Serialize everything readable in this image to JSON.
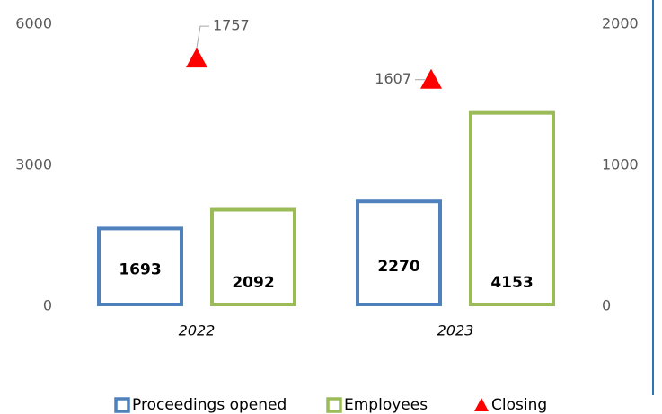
{
  "chart_data": {
    "type": "bar",
    "categories": [
      "2022",
      "2023"
    ],
    "series": [
      {
        "name": "Proceedings opened",
        "color": "#4f81bd",
        "values": [
          1693,
          2270
        ]
      },
      {
        "name": "Employees",
        "color": "#9bbb59",
        "values": [
          2092,
          4153
        ]
      },
      {
        "name": "Closing",
        "color": "#ff0000",
        "values": [
          1757,
          1607
        ],
        "axis": "y2",
        "marker": "triangle"
      }
    ],
    "ylim": [
      0,
      6000
    ],
    "yticks": [
      0,
      3000,
      6000
    ],
    "y2lim": [
      0,
      2000
    ],
    "y2ticks": [
      0,
      1000,
      2000
    ],
    "grid": false,
    "legend": "bottom"
  }
}
